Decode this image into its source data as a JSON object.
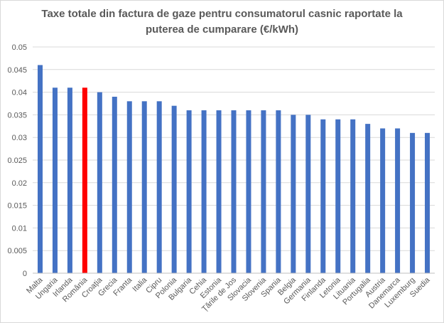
{
  "chart_data": {
    "type": "bar",
    "title_line1": "Taxe totale din factura de gaze pentru consumatorul casnic raportate la",
    "title_line2": "puterea de cumparare (€/kWh)",
    "title": "Taxe totale din factura de gaze pentru consumatorul casnic raportate la puterea de cumparare (€/kWh)",
    "xlabel": "",
    "ylabel": "",
    "ylim": [
      0,
      0.05
    ],
    "yticks": [
      "0",
      "0.005",
      "0.01",
      "0.015",
      "0.02",
      "0.025",
      "0.03",
      "0.035",
      "0.04",
      "0.045",
      "0.05"
    ],
    "grid": true,
    "categories": [
      "Malta",
      "Ungaria",
      "Irlanda",
      "România",
      "Croația",
      "Grecia",
      "Franta",
      "Italia",
      "Cipru",
      "Polonia",
      "Bulgaria",
      "Cehia",
      "Estonia",
      "Țările de Jos",
      "Slovacia",
      "Slovenia",
      "Spania",
      "Belgia",
      "Germania",
      "Finlanda",
      "Letonia",
      "Lituania",
      "Portugalia",
      "Austria",
      "Danemarca",
      "Luxemburg",
      "Suedia"
    ],
    "values": [
      0.046,
      0.041,
      0.041,
      0.041,
      0.04,
      0.039,
      0.038,
      0.038,
      0.038,
      0.037,
      0.036,
      0.036,
      0.036,
      0.036,
      0.036,
      0.036,
      0.036,
      0.035,
      0.035,
      0.034,
      0.034,
      0.034,
      0.033,
      0.032,
      0.032,
      0.031,
      0.031
    ],
    "bar_color": "#4472c4",
    "highlight_category": "România",
    "highlight_color": "#ff0000",
    "gridline_color": "#d9d9d9"
  }
}
